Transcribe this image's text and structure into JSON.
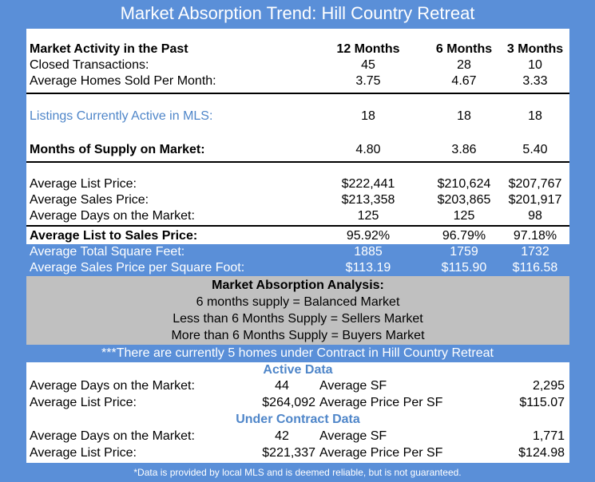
{
  "title": "Market Absorption Trend: Hill Country Retreat",
  "header": {
    "label": "Market Activity in the Past",
    "col1": "12 Months",
    "col2": "6 Months",
    "col3": "3 Months"
  },
  "closed": {
    "label": "Closed Transactions:",
    "v1": "45",
    "v2": "28",
    "v3": "10"
  },
  "avg_sold": {
    "label": "Average Homes Sold Per Month:",
    "v1": "3.75",
    "v2": "4.67",
    "v3": "3.33"
  },
  "listings": {
    "label": "Listings Currently Active in MLS:",
    "v1": "18",
    "v2": "18",
    "v3": "18"
  },
  "supply": {
    "label": "Months of Supply on Market:",
    "v1": "4.80",
    "v2": "3.86",
    "v3": "5.40"
  },
  "list_price": {
    "label": "Average List Price:",
    "v1": "$222,441",
    "v2": "$210,624",
    "v3": "$207,767"
  },
  "sales_price": {
    "label": "Average Sales Price:",
    "v1": "$213,358",
    "v2": "$203,865",
    "v3": "$201,917"
  },
  "dom": {
    "label": "Average Days on the Market:",
    "v1": "125",
    "v2": "125",
    "v3": "98"
  },
  "list_to_sales": {
    "label": "Average List to Sales Price:",
    "v1": "95.92%",
    "v2": "96.79%",
    "v3": "97.18%"
  },
  "sqft": {
    "label": "Average Total Square Feet:",
    "v1": "1885",
    "v2": "1759",
    "v3": "1732"
  },
  "price_sqft": {
    "label": "Average Sales Price per Square Foot:",
    "v1": "$113.19",
    "v2": "$115.90",
    "v3": "$116.58"
  },
  "analysis": {
    "title": "Market Absorption Analysis:",
    "line1": "6 months supply = Balanced Market",
    "line2": "Less than 6 Months Supply = Sellers Market",
    "line3": "More than 6 Months Supply = Buyers Market"
  },
  "contract_note": "***There are currently 5 homes under Contract in Hill Country Retreat",
  "active": {
    "title": "Active Data",
    "dom_label": "Average Days on the Market:",
    "dom_value": "44",
    "sf_label": "Average SF",
    "sf_value": "2,295",
    "list_label": "Average List Price:",
    "list_value": "$264,092",
    "ppsf_label": "Average Price Per SF",
    "ppsf_value": "$115.07"
  },
  "under_contract": {
    "title": "Under Contract Data",
    "dom_label": "Average Days on the Market:",
    "dom_value": "42",
    "sf_label": "Average SF",
    "sf_value": "1,771",
    "list_label": "Average List Price:",
    "list_value": "$221,337",
    "ppsf_label": "Average Price Per SF",
    "ppsf_value": "$124.98"
  },
  "footer": "*Data is provided by local MLS and is deemed reliable, but is not guaranteed."
}
